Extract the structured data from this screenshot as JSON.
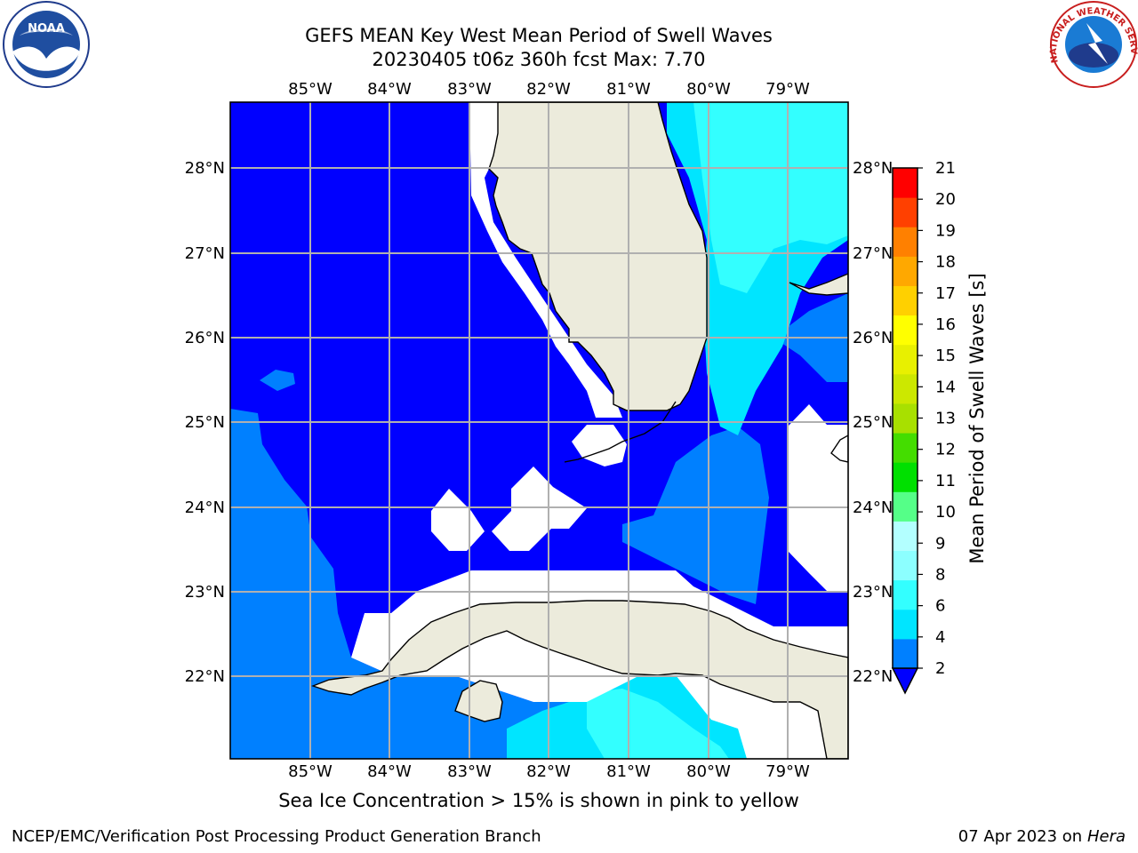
{
  "header": {
    "title_line1": "GEFS MEAN Key West Mean Period of Swell Waves",
    "title_line2": "20230405 t06z 360h fcst   Max: 7.70"
  },
  "note": "Sea Ice Concentration > 15% is shown in pink to yellow",
  "footer": {
    "left": "NCEP/EMC/Verification Post Processing Product Generation Branch",
    "date": "07 Apr 2023 on ",
    "machine": "Hera"
  },
  "logos": {
    "noaa_text": "NOAA",
    "nws_text": "NATIONAL WEATHER SERVICE"
  },
  "map": {
    "lon_labels": [
      "85°W",
      "84°W",
      "83°W",
      "82°W",
      "81°W",
      "80°W",
      "79°W"
    ],
    "lat_labels": [
      "28°N",
      "27°N",
      "26°N",
      "25°N",
      "24°N",
      "23°N",
      "22°N"
    ]
  },
  "colorbar": {
    "label": "Mean Period of Swell Waves [s]",
    "ticks": [
      "2",
      "4",
      "6",
      "8",
      "9",
      "10",
      "11",
      "12",
      "13",
      "14",
      "15",
      "16",
      "17",
      "18",
      "19",
      "20",
      "21"
    ],
    "colors": [
      "#0080ff",
      "#00e5ff",
      "#33ffff",
      "#8cffff",
      "#b3ffff",
      "#55ff88",
      "#00e000",
      "#44dd00",
      "#a8e000",
      "#cce800",
      "#e8f000",
      "#ffff00",
      "#ffd000",
      "#ffa800",
      "#ff8000",
      "#ff4000",
      "#ff0000"
    ],
    "underflow_color": "#0000ff"
  },
  "chart_data": {
    "type": "heatmap",
    "title": "GEFS MEAN Key West Mean Period of Swell Waves",
    "subtitle": "20230405 t06z 360h fcst   Max: 7.70",
    "units": "s",
    "max": 7.7,
    "lon_range": [
      -86,
      -78.3
    ],
    "lat_range": [
      21,
      28.8
    ],
    "levels": [
      2,
      4,
      6,
      8,
      9,
      10,
      11,
      12,
      13,
      14,
      15,
      16,
      17,
      18,
      19,
      20,
      21
    ]
  }
}
